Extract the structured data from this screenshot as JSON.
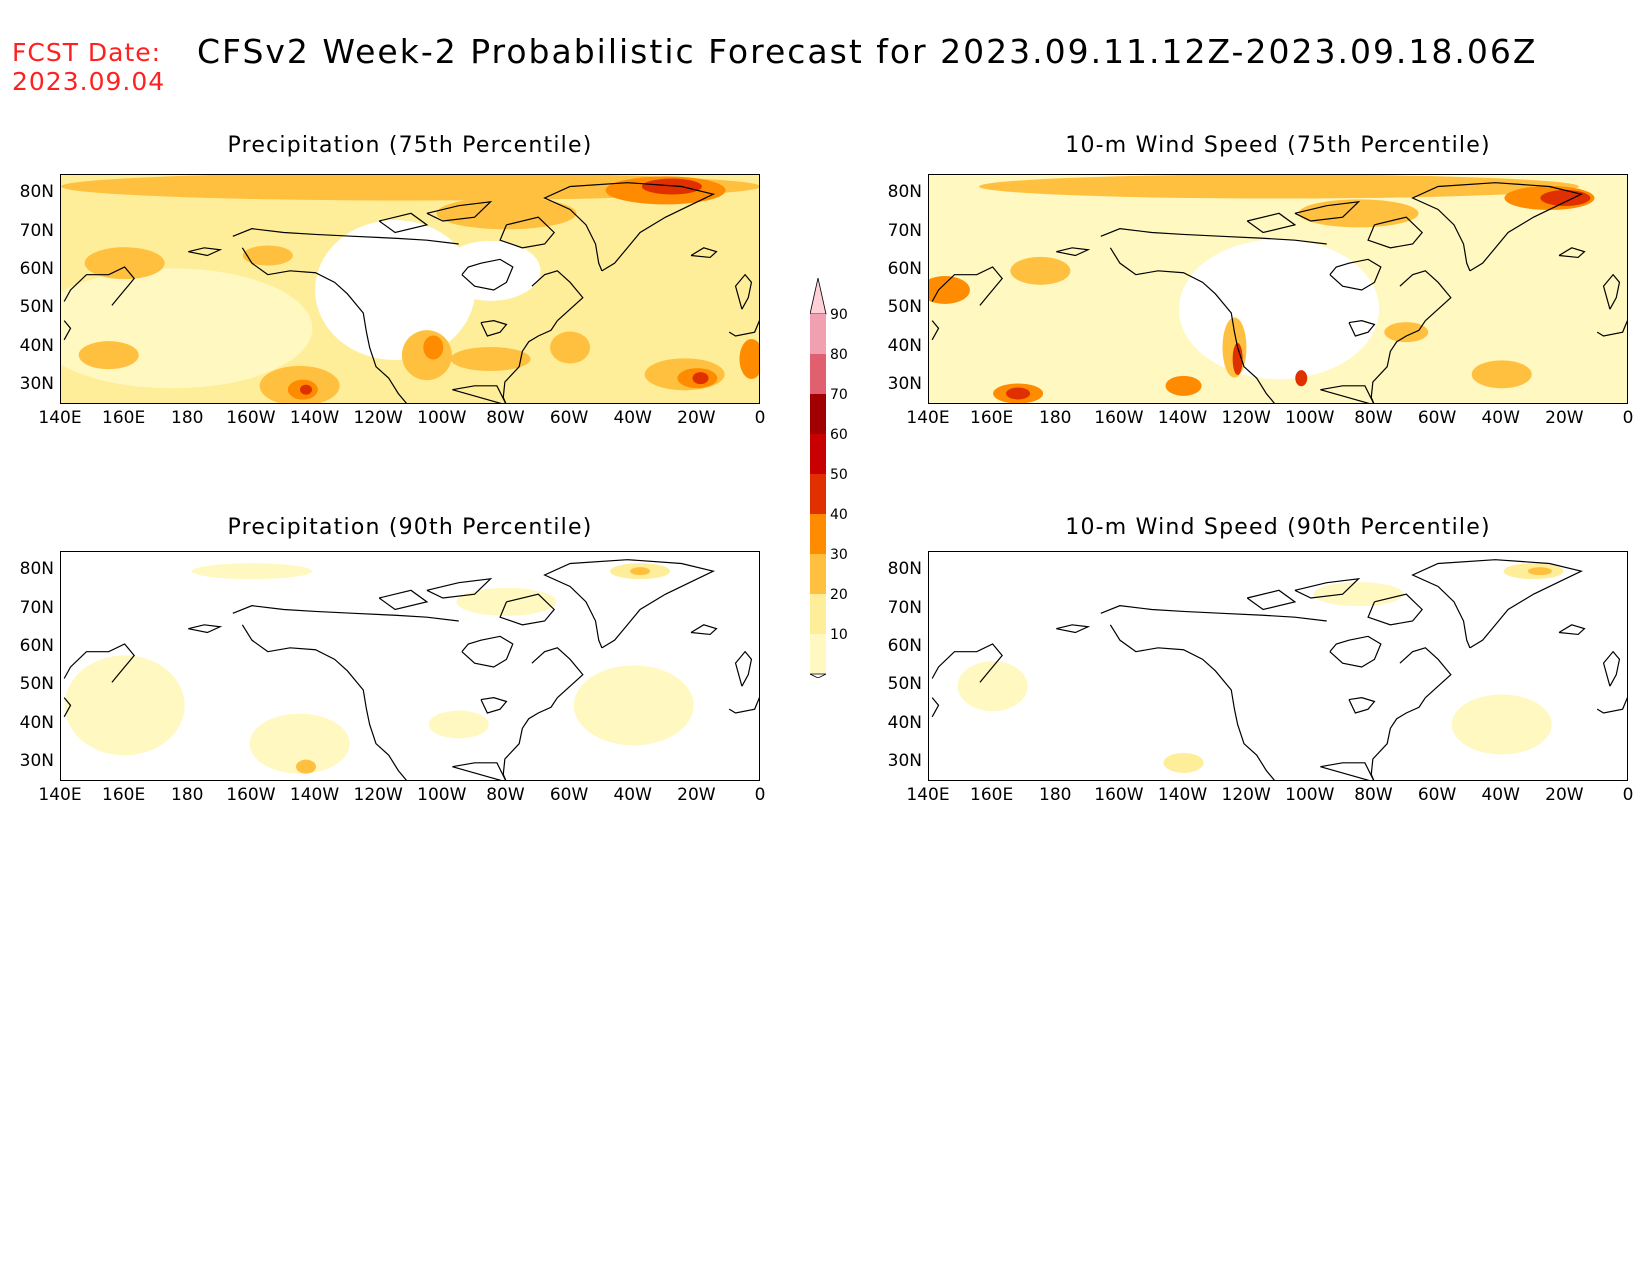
{
  "header": {
    "fcst_label": "FCST Date:",
    "fcst_date": "2023.09.04",
    "title": "CFSv2 Week-2 Probabilistic Forecast for 2023.09.11.12Z-2023.09.18.06Z"
  },
  "panels": [
    {
      "id": "p75",
      "title": "Precipitation (75th Percentile)"
    },
    {
      "id": "p90",
      "title": "Precipitation (90th Percentile)"
    },
    {
      "id": "w75",
      "title": "10-m Wind Speed (75th Percentile)"
    },
    {
      "id": "w90",
      "title": "10-m Wind Speed (90th Percentile)"
    }
  ],
  "lat_ticks": [
    "80N",
    "70N",
    "60N",
    "50N",
    "40N",
    "30N"
  ],
  "lon_ticks": [
    "140E",
    "160E",
    "180",
    "160W",
    "140W",
    "120W",
    "100W",
    "80W",
    "60W",
    "40W",
    "20W",
    "0"
  ],
  "colorbar": {
    "levels": [
      "10",
      "20",
      "30",
      "40",
      "50",
      "60",
      "70",
      "80",
      "90"
    ],
    "colors": [
      "#fff8c0",
      "#ffee99",
      "#ffc040",
      "#ff8c00",
      "#e03000",
      "#c80000",
      "#a00000",
      "#e06070",
      "#f0a0b0",
      "#ffd0d8"
    ]
  }
}
